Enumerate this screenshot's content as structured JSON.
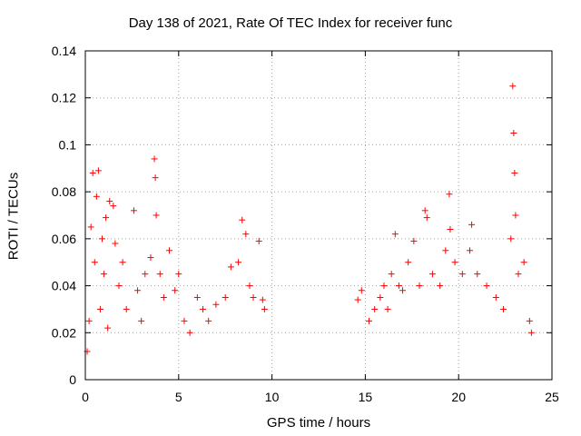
{
  "chart_data": {
    "type": "scatter",
    "title": "Day 138 of 2021, Rate Of TEC Index for receiver func",
    "xlabel": "GPS time / hours",
    "ylabel": "ROTI / TECUs",
    "xlim": [
      0,
      25
    ],
    "ylim": [
      0,
      0.14
    ],
    "x_ticks": [
      0,
      5,
      10,
      15,
      20,
      25
    ],
    "x_tick_labels": [
      "0",
      "5",
      "10",
      "15",
      "20",
      "25"
    ],
    "y_ticks": [
      0,
      0.02,
      0.04,
      0.06,
      0.08,
      0.1,
      0.12,
      0.14
    ],
    "y_tick_labels": [
      "0",
      "0.02",
      "0.04",
      "0.06",
      "0.08",
      "0.1",
      "0.12",
      "0.14"
    ],
    "grid": true,
    "marker": "+",
    "marker_color": "#ff0000",
    "series": [
      {
        "points": [
          [
            0.1,
            0.012
          ],
          [
            0.2,
            0.025
          ],
          [
            0.3,
            0.065
          ],
          [
            0.4,
            0.088
          ],
          [
            0.5,
            0.05
          ],
          [
            0.6,
            0.078
          ],
          [
            0.7,
            0.089
          ],
          [
            0.8,
            0.03
          ],
          [
            0.9,
            0.06
          ],
          [
            1.0,
            0.045
          ],
          [
            1.1,
            0.069
          ],
          [
            1.2,
            0.022
          ],
          [
            1.3,
            0.076
          ],
          [
            1.5,
            0.074
          ],
          [
            1.6,
            0.058
          ],
          [
            1.8,
            0.04
          ],
          [
            2.0,
            0.05
          ],
          [
            2.2,
            0.03
          ],
          [
            2.6,
            0.072
          ],
          [
            2.8,
            0.038
          ],
          [
            3.0,
            0.025
          ],
          [
            3.2,
            0.045
          ],
          [
            3.5,
            0.052
          ],
          [
            3.7,
            0.094
          ],
          [
            3.75,
            0.086
          ],
          [
            3.8,
            0.07
          ],
          [
            4.0,
            0.045
          ],
          [
            4.2,
            0.035
          ],
          [
            4.5,
            0.055
          ],
          [
            4.8,
            0.038
          ],
          [
            5.0,
            0.045
          ],
          [
            5.3,
            0.025
          ],
          [
            5.6,
            0.02
          ],
          [
            6.0,
            0.035
          ],
          [
            6.3,
            0.03
          ],
          [
            6.6,
            0.025
          ],
          [
            7.0,
            0.032
          ],
          [
            7.5,
            0.035
          ],
          [
            7.8,
            0.048
          ],
          [
            8.2,
            0.05
          ],
          [
            8.4,
            0.068
          ],
          [
            8.6,
            0.062
          ],
          [
            8.8,
            0.04
          ],
          [
            9.0,
            0.035
          ],
          [
            9.3,
            0.059
          ],
          [
            9.5,
            0.034
          ],
          [
            9.6,
            0.03
          ],
          [
            14.6,
            0.034
          ],
          [
            14.8,
            0.038
          ],
          [
            15.2,
            0.025
          ],
          [
            15.5,
            0.03
          ],
          [
            15.8,
            0.035
          ],
          [
            16.0,
            0.04
          ],
          [
            16.2,
            0.03
          ],
          [
            16.4,
            0.045
          ],
          [
            16.6,
            0.062
          ],
          [
            16.8,
            0.04
          ],
          [
            17.0,
            0.038
          ],
          [
            17.3,
            0.05
          ],
          [
            17.6,
            0.059
          ],
          [
            17.9,
            0.04
          ],
          [
            18.2,
            0.072
          ],
          [
            18.3,
            0.069
          ],
          [
            18.6,
            0.045
          ],
          [
            19.0,
            0.04
          ],
          [
            19.3,
            0.055
          ],
          [
            19.5,
            0.079
          ],
          [
            19.55,
            0.064
          ],
          [
            19.8,
            0.05
          ],
          [
            20.2,
            0.045
          ],
          [
            20.6,
            0.055
          ],
          [
            20.7,
            0.066
          ],
          [
            21.0,
            0.045
          ],
          [
            21.5,
            0.04
          ],
          [
            22.0,
            0.035
          ],
          [
            22.4,
            0.03
          ],
          [
            22.8,
            0.06
          ],
          [
            22.9,
            0.125
          ],
          [
            22.95,
            0.105
          ],
          [
            23.0,
            0.088
          ],
          [
            23.05,
            0.07
          ],
          [
            23.2,
            0.045
          ],
          [
            23.5,
            0.05
          ],
          [
            23.8,
            0.025
          ],
          [
            23.9,
            0.02
          ]
        ]
      }
    ]
  }
}
